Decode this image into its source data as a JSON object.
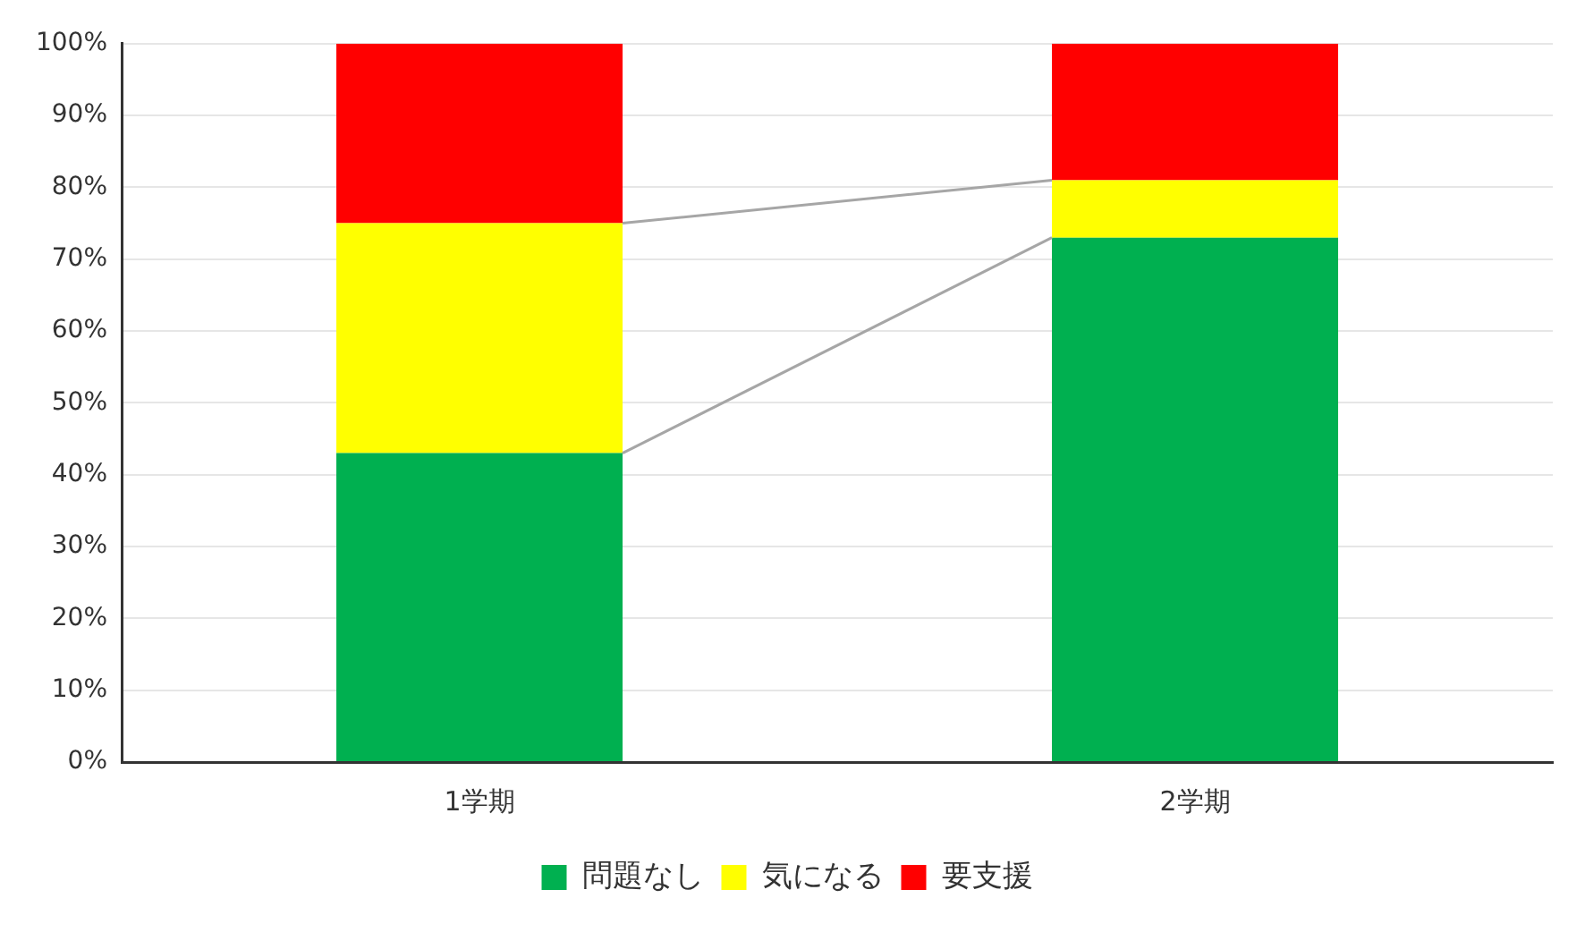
{
  "chart_data": {
    "type": "bar",
    "stacked": true,
    "categories": [
      "1学期",
      "2学期"
    ],
    "series": [
      {
        "name": "問題なし",
        "color": "#00b050",
        "values": [
          43,
          73
        ]
      },
      {
        "name": "気になる",
        "color": "#ffff00",
        "values": [
          32,
          8
        ]
      },
      {
        "name": "要支援",
        "color": "#ff0000",
        "values": [
          25,
          19
        ]
      }
    ],
    "ylim": [
      0,
      100
    ],
    "yticks": [
      {
        "value": 0,
        "label": "0%"
      },
      {
        "value": 10,
        "label": "10%"
      },
      {
        "value": 20,
        "label": "20%"
      },
      {
        "value": 30,
        "label": "30%"
      },
      {
        "value": 40,
        "label": "40%"
      },
      {
        "value": 50,
        "label": "50%"
      },
      {
        "value": 60,
        "label": "60%"
      },
      {
        "value": 70,
        "label": "70%"
      },
      {
        "value": 80,
        "label": "80%"
      },
      {
        "value": 90,
        "label": "90%"
      },
      {
        "value": 100,
        "label": "100%"
      }
    ],
    "grid": "y",
    "legend": "bottom"
  }
}
